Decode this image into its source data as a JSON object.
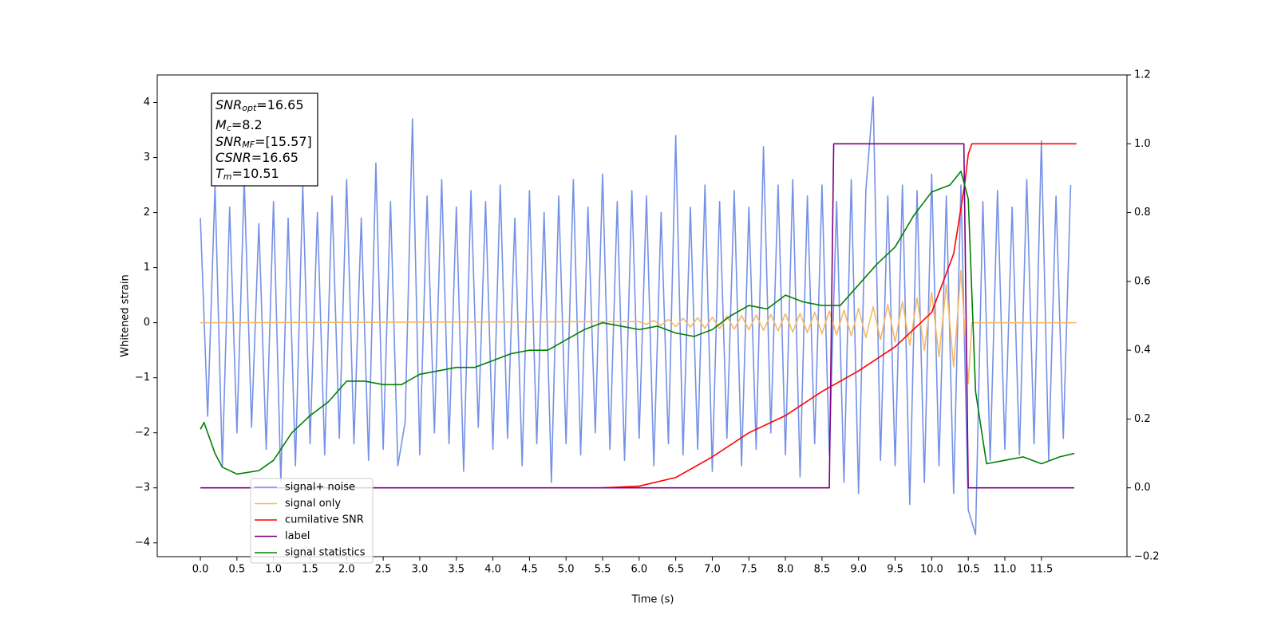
{
  "chart_data": {
    "type": "line",
    "xlabel": "Time (s)",
    "ylabel": "Whitened strain",
    "xlim": [
      -0.59,
      12.67
    ],
    "ylim": [
      -4.25,
      4.5
    ],
    "y2lim": [
      -0.2,
      1.2
    ],
    "xticks": [
      {
        "value": 0,
        "label": "0.0"
      },
      0.5,
      {
        "value": 1,
        "label": "1.0"
      },
      1.5,
      {
        "value": 2,
        "label": "2.0"
      },
      2.5,
      {
        "value": 3,
        "label": "3.0"
      },
      3.5,
      {
        "value": 4,
        "label": "4.0"
      },
      4.5,
      {
        "value": 5,
        "label": "5.0"
      },
      5.5,
      {
        "value": 6,
        "label": "6.0"
      },
      6.5,
      {
        "value": 7,
        "label": "7.0"
      },
      7.5,
      {
        "value": 8,
        "label": "8.0"
      },
      8.5,
      {
        "value": 9,
        "label": "9.0"
      },
      9.5,
      {
        "value": 10,
        "label": "10.0"
      },
      10.5,
      {
        "value": 11,
        "label": "11.0"
      },
      11.5
    ],
    "yticks": [
      {
        "value": -4,
        "label": "−4"
      },
      {
        "value": -3,
        "label": "−3"
      },
      {
        "value": -2,
        "label": "−2"
      },
      {
        "value": -1,
        "label": "−1"
      },
      0,
      1,
      2,
      3,
      4
    ],
    "y2ticks": [
      {
        "value": -0.2,
        "label": "−0.2"
      },
      {
        "value": 0,
        "label": "0.0"
      },
      0.2,
      0.4,
      0.6,
      0.8,
      {
        "value": 1,
        "label": "1.0"
      },
      1.2
    ],
    "legend": "lower left",
    "annotations": [
      {
        "text": "SNR",
        "sub": "opt",
        "value": "=16.65"
      },
      {
        "text": "M",
        "sub": "c",
        "value": "=8.2"
      },
      {
        "text": "SNR",
        "sub": "MF",
        "value": "=[15.57]"
      },
      {
        "text": "CSNR",
        "sub": "",
        "value": "=16.65"
      },
      {
        "text": "T",
        "sub": "m",
        "value": "=10.51"
      }
    ],
    "series": [
      {
        "name": "signal+ noise",
        "color": "#7591e6",
        "axis": "y",
        "x": [
          0,
          0.1,
          0.2,
          0.3,
          0.4,
          0.5,
          0.6,
          0.7,
          0.8,
          0.9,
          1,
          1.1,
          1.2,
          1.3,
          1.4,
          1.5,
          1.6,
          1.7,
          1.8,
          1.9,
          2,
          2.1,
          2.2,
          2.3,
          2.4,
          2.5,
          2.6,
          2.7,
          2.8,
          2.9,
          3,
          3.1,
          3.2,
          3.3,
          3.4,
          3.5,
          3.6,
          3.7,
          3.8,
          3.9,
          4,
          4.1,
          4.2,
          4.3,
          4.4,
          4.5,
          4.6,
          4.7,
          4.8,
          4.9,
          5,
          5.1,
          5.2,
          5.3,
          5.4,
          5.5,
          5.6,
          5.7,
          5.8,
          5.9,
          6,
          6.1,
          6.2,
          6.3,
          6.4,
          6.5,
          6.6,
          6.7,
          6.8,
          6.9,
          7,
          7.1,
          7.2,
          7.3,
          7.4,
          7.5,
          7.6,
          7.7,
          7.8,
          7.9,
          8,
          8.1,
          8.2,
          8.3,
          8.4,
          8.5,
          8.6,
          8.7,
          8.8,
          8.9,
          9,
          9.1,
          9.2,
          9.3,
          9.4,
          9.5,
          9.6,
          9.7,
          9.8,
          9.9,
          10,
          10.1,
          10.2,
          10.3,
          10.4,
          10.5,
          10.6,
          10.7,
          10.8,
          10.9,
          11,
          11.1,
          11.2,
          11.3,
          11.4,
          11.5,
          11.6,
          11.7,
          11.8,
          11.9
        ],
        "values": [
          1.9,
          -1.7,
          2.5,
          -2.6,
          2.1,
          -2.0,
          2.6,
          -1.9,
          1.8,
          -2.3,
          2.2,
          -2.9,
          1.9,
          -2.6,
          2.5,
          -2.2,
          2.0,
          -2.4,
          2.3,
          -2.1,
          2.6,
          -2.2,
          1.9,
          -2.5,
          2.9,
          -2.3,
          2.2,
          -2.6,
          -1.8,
          3.7,
          -2.4,
          2.3,
          -2.0,
          2.6,
          -2.2,
          2.1,
          -2.7,
          2.4,
          -1.9,
          2.2,
          -2.3,
          2.5,
          -2.1,
          1.9,
          -2.6,
          2.4,
          -2.2,
          2.0,
          -2.9,
          2.3,
          -2.2,
          2.6,
          -2.4,
          2.1,
          -2.0,
          2.7,
          -2.3,
          2.2,
          -2.5,
          2.4,
          -2.1,
          2.3,
          -2.6,
          2.0,
          -2.2,
          3.4,
          -2.4,
          2.1,
          -2.3,
          2.5,
          -2.7,
          2.2,
          -2.1,
          2.4,
          -2.6,
          2.1,
          -2.3,
          3.2,
          -2.0,
          2.5,
          -2.4,
          2.6,
          -2.8,
          2.3,
          -2.2,
          2.5,
          -2.4,
          2.2,
          -2.9,
          2.6,
          -3.1,
          2.4,
          4.1,
          -2.5,
          2.3,
          -2.6,
          2.5,
          -3.3,
          2.4,
          -2.9,
          2.7,
          -2.6,
          2.3,
          -3.1,
          2.5,
          -3.4,
          -3.85,
          2.2,
          -2.5,
          2.4,
          -2.3,
          2.1,
          -2.4,
          2.6,
          -2.2,
          3.3,
          -2.5,
          2.3,
          -2.1,
          2.5
        ]
      },
      {
        "name": "signal only",
        "color": "#f7b865",
        "axis": "y",
        "x": [
          0,
          6,
          6.1,
          6.2,
          6.3,
          6.4,
          6.5,
          6.6,
          6.7,
          6.8,
          6.9,
          7,
          7.1,
          7.2,
          7.3,
          7.4,
          7.5,
          7.6,
          7.7,
          7.8,
          7.9,
          8,
          8.1,
          8.2,
          8.3,
          8.4,
          8.5,
          8.6,
          8.7,
          8.8,
          8.9,
          9,
          9.1,
          9.2,
          9.3,
          9.4,
          9.5,
          9.6,
          9.7,
          9.8,
          9.9,
          10,
          10.1,
          10.2,
          10.3,
          10.4,
          10.5,
          10.55,
          11.98
        ],
        "values": [
          0,
          0.02,
          -0.03,
          0.04,
          -0.05,
          0.06,
          -0.07,
          0.08,
          -0.08,
          0.09,
          -0.1,
          0.1,
          -0.11,
          0.12,
          -0.12,
          0.13,
          -0.13,
          0.14,
          -0.14,
          0.15,
          -0.15,
          0.16,
          -0.17,
          0.17,
          -0.18,
          0.19,
          -0.2,
          0.21,
          -0.22,
          0.23,
          -0.24,
          0.26,
          -0.27,
          0.29,
          -0.31,
          0.33,
          -0.35,
          0.38,
          -0.41,
          0.45,
          -0.5,
          0.55,
          -0.62,
          0.7,
          -0.8,
          0.95,
          -1.1,
          0,
          0
        ]
      },
      {
        "name": "cumilative SNR",
        "color": "#ff0000",
        "axis": "y2",
        "x": [
          5.5,
          6,
          6.5,
          7,
          7.5,
          8,
          8.5,
          9,
          9.5,
          10,
          10.3,
          10.45,
          10.5,
          10.55,
          11.98
        ],
        "values": [
          0,
          0.005,
          0.03,
          0.09,
          0.16,
          0.21,
          0.28,
          0.34,
          0.41,
          0.51,
          0.68,
          0.88,
          0.97,
          1,
          1
        ]
      },
      {
        "name": "label",
        "color": "#800080",
        "axis": "y2",
        "x": [
          0,
          8.6,
          8.66,
          10.44,
          10.5,
          11.95
        ],
        "values": [
          0,
          0,
          1,
          1,
          0,
          0
        ]
      },
      {
        "name": "signal statistics",
        "color": "#008000",
        "axis": "y2",
        "x": [
          0,
          0.05,
          0.2,
          0.3,
          0.5,
          0.8,
          1,
          1.25,
          1.5,
          1.75,
          2,
          2.25,
          2.5,
          2.75,
          3,
          3.25,
          3.5,
          3.75,
          4,
          4.25,
          4.5,
          4.75,
          5,
          5.25,
          5.5,
          5.75,
          6,
          6.25,
          6.5,
          6.75,
          7,
          7.25,
          7.5,
          7.75,
          8,
          8.25,
          8.5,
          8.75,
          9,
          9.25,
          9.5,
          9.75,
          10,
          10.25,
          10.4,
          10.5,
          10.6,
          10.75,
          11,
          11.25,
          11.5,
          11.75,
          11.95
        ],
        "values": [
          0.17,
          0.19,
          0.1,
          0.06,
          0.04,
          0.05,
          0.08,
          0.16,
          0.21,
          0.25,
          0.31,
          0.31,
          0.3,
          0.3,
          0.33,
          0.34,
          0.35,
          0.35,
          0.37,
          0.39,
          0.4,
          0.4,
          0.43,
          0.46,
          0.48,
          0.47,
          0.46,
          0.47,
          0.45,
          0.44,
          0.46,
          0.5,
          0.53,
          0.52,
          0.56,
          0.54,
          0.53,
          0.53,
          0.59,
          0.65,
          0.7,
          0.79,
          0.86,
          0.88,
          0.92,
          0.84,
          0.28,
          0.07,
          0.08,
          0.09,
          0.07,
          0.09,
          0.1
        ]
      }
    ]
  }
}
